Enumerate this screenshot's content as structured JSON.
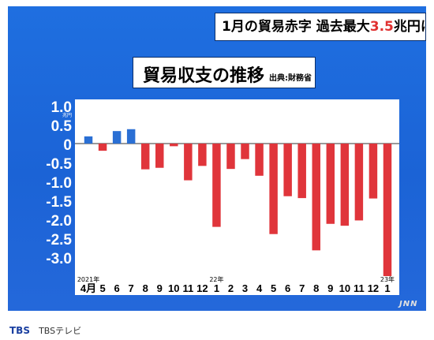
{
  "headline": {
    "prefix": "1月の貿易赤字  過去最大",
    "highlight": "3.5",
    "suffix": "兆円に"
  },
  "title": "貿易収支の推移",
  "source": "出典:財務省",
  "footer": {
    "logo": "TBS",
    "name": "TBSテレビ"
  },
  "watermark": "JNN",
  "colors": {
    "positive": "#2a6fd4",
    "negative": "#e0353b",
    "frame": "#1f6fe0"
  },
  "chart_data": {
    "type": "bar",
    "title": "貿易収支の推移",
    "unit_label": "兆円",
    "ylim": [
      -3.5,
      1.0
    ],
    "yticks": [
      1.0,
      0.5,
      0,
      -0.5,
      -1.0,
      -1.5,
      -2.0,
      -2.5,
      -3.0
    ],
    "ytick_labels": [
      "1.0",
      "0.5",
      "0",
      "-0.5",
      "-1.0",
      "-1.5",
      "-2.0",
      "-2.5",
      "-3.0"
    ],
    "categories": [
      "4月",
      "5",
      "6",
      "7",
      "8",
      "9",
      "10",
      "11",
      "12",
      "1",
      "2",
      "3",
      "4",
      "5",
      "6",
      "7",
      "8",
      "9",
      "10",
      "11",
      "12",
      "1"
    ],
    "values": [
      0.19,
      -0.19,
      0.33,
      0.38,
      -0.68,
      -0.64,
      -0.07,
      -0.97,
      -0.59,
      -2.2,
      -0.67,
      -0.41,
      -0.85,
      -2.39,
      -1.39,
      -1.44,
      -2.82,
      -2.12,
      -2.17,
      -2.03,
      -1.45,
      -3.5
    ],
    "year_markers": [
      {
        "index": 0,
        "label": "2021年"
      },
      {
        "index": 9,
        "label": "22年"
      },
      {
        "index": 21,
        "label": "23年"
      }
    ],
    "grid": false
  }
}
